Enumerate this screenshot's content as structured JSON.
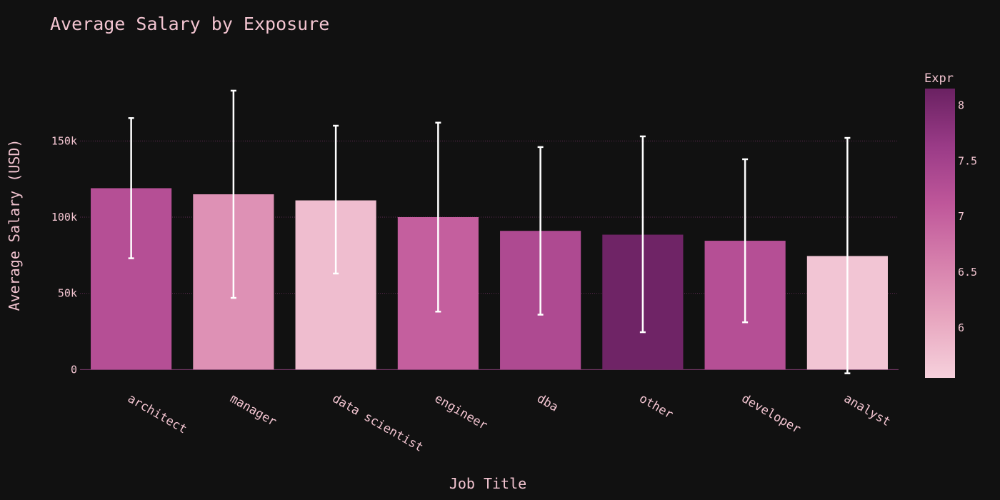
{
  "chart_data": {
    "type": "bar",
    "title": "Average Salary by Exposure",
    "xlabel": "Job Title",
    "ylabel": "Average Salary (USD)",
    "categories": [
      "architect",
      "manager",
      "data scientist",
      "engineer",
      "dba",
      "other",
      "developer",
      "analyst"
    ],
    "values": [
      119000,
      115000,
      111000,
      100000,
      91000,
      88500,
      84500,
      74500
    ],
    "error_high": [
      165000,
      183000,
      160000,
      162000,
      146000,
      153000,
      138000,
      152000
    ],
    "error_low": [
      73000,
      47000,
      63000,
      38000,
      36000,
      24500,
      31000,
      -2500
    ],
    "color_values": [
      7.25,
      6.35,
      5.8,
      7.0,
      7.35,
      8.1,
      7.25,
      5.7
    ],
    "ylim": [
      -5000,
      205000
    ],
    "yticks": [
      0,
      50000,
      100000,
      150000
    ],
    "ytick_labels": [
      "0",
      "50k",
      "100k",
      "150k"
    ],
    "grid": true,
    "colorbar": {
      "title": "Expr",
      "range": [
        5.55,
        8.15
      ],
      "ticks": [
        6,
        6.5,
        7,
        7.5,
        8
      ],
      "tick_labels": [
        "6",
        "6.5",
        "7",
        "7.5",
        "8"
      ],
      "colorscale": [
        "#f6d1dc",
        "#e8a7c0",
        "#d67fac",
        "#bf579a",
        "#9a3b87",
        "#6a2162"
      ]
    },
    "legend": "colorbar-right"
  },
  "colors": {
    "background": "#111111",
    "text": "#f2c4d0",
    "error_bar": "#ffffff"
  }
}
